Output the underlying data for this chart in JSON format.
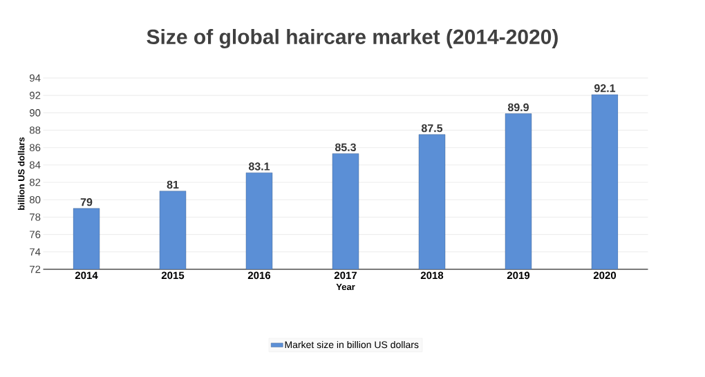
{
  "chart_data": {
    "type": "bar",
    "title": "Size of global haircare market (2014-2020)",
    "xlabel": "Year",
    "ylabel": "billion US dollars",
    "categories": [
      "2014",
      "2015",
      "2016",
      "2017",
      "2018",
      "2019",
      "2020"
    ],
    "series": [
      {
        "name": "Market size in billion US dollars",
        "color": "#5b8fd6",
        "values": [
          79,
          81,
          83.1,
          85.3,
          87.5,
          89.9,
          92.1
        ]
      }
    ],
    "ylim": [
      72,
      94
    ],
    "yticks": [
      72,
      74,
      76,
      78,
      80,
      82,
      84,
      86,
      88,
      90,
      92,
      94
    ],
    "grid": "y",
    "legend": "bottom",
    "data_labels": true
  }
}
